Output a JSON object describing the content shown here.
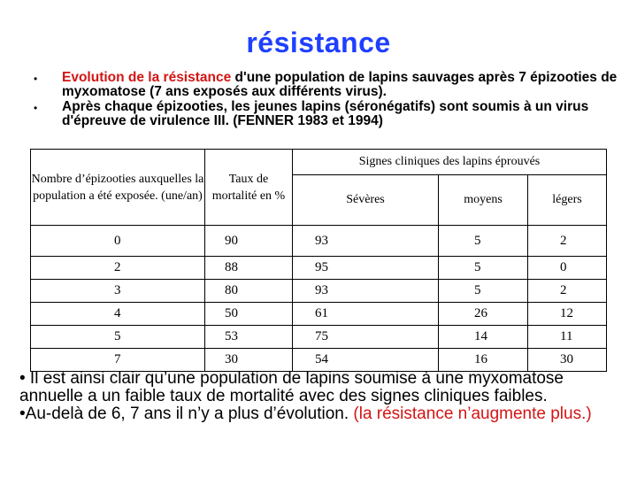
{
  "title": "résistance",
  "bullets": {
    "b1_red": "Evolution de la résistance",
    "b1_rest": " d'une population de lapins sauvages après 7 épizooties de myxomatose (7 ans exposés aux différents virus).",
    "b2": "Après chaque  épizooties, les jeunes lapins (séronégatifs) sont  soumis à un virus d'épreuve de virulence III. (FENNER 1983 et 1994)",
    "dot": "•"
  },
  "table": {
    "col1_header": "Nombre d’épizooties auxquelles la population a été exposée. (une/an)",
    "col2_header": "Taux de mortalité en %",
    "signs_header": "Signes cliniques des lapins éprouvés",
    "sub_headers": [
      "Sévères",
      "moyens",
      "légers"
    ],
    "rows": [
      [
        "0",
        "90",
        "93",
        "5",
        "2"
      ],
      [
        "2",
        "88",
        "95",
        "5",
        "0"
      ],
      [
        "3",
        "80",
        "93",
        "5",
        "2"
      ],
      [
        "4",
        "50",
        "61",
        "26",
        "12"
      ],
      [
        "5",
        "53",
        "75",
        "14",
        "11"
      ],
      [
        "7",
        "30",
        "54",
        "16",
        "30"
      ]
    ]
  },
  "conclusion": {
    "p1": "• Il est ainsi clair qu’une population de lapins soumise à  une myxomatose annuelle a un faible taux de mortalité  avec des signes cliniques faibles.",
    "p2_black": "•Au-delà de 6, 7 ans il n’y  a plus d’évolution. ",
    "p2_red": "(la résistance n’augmente plus.)"
  }
}
